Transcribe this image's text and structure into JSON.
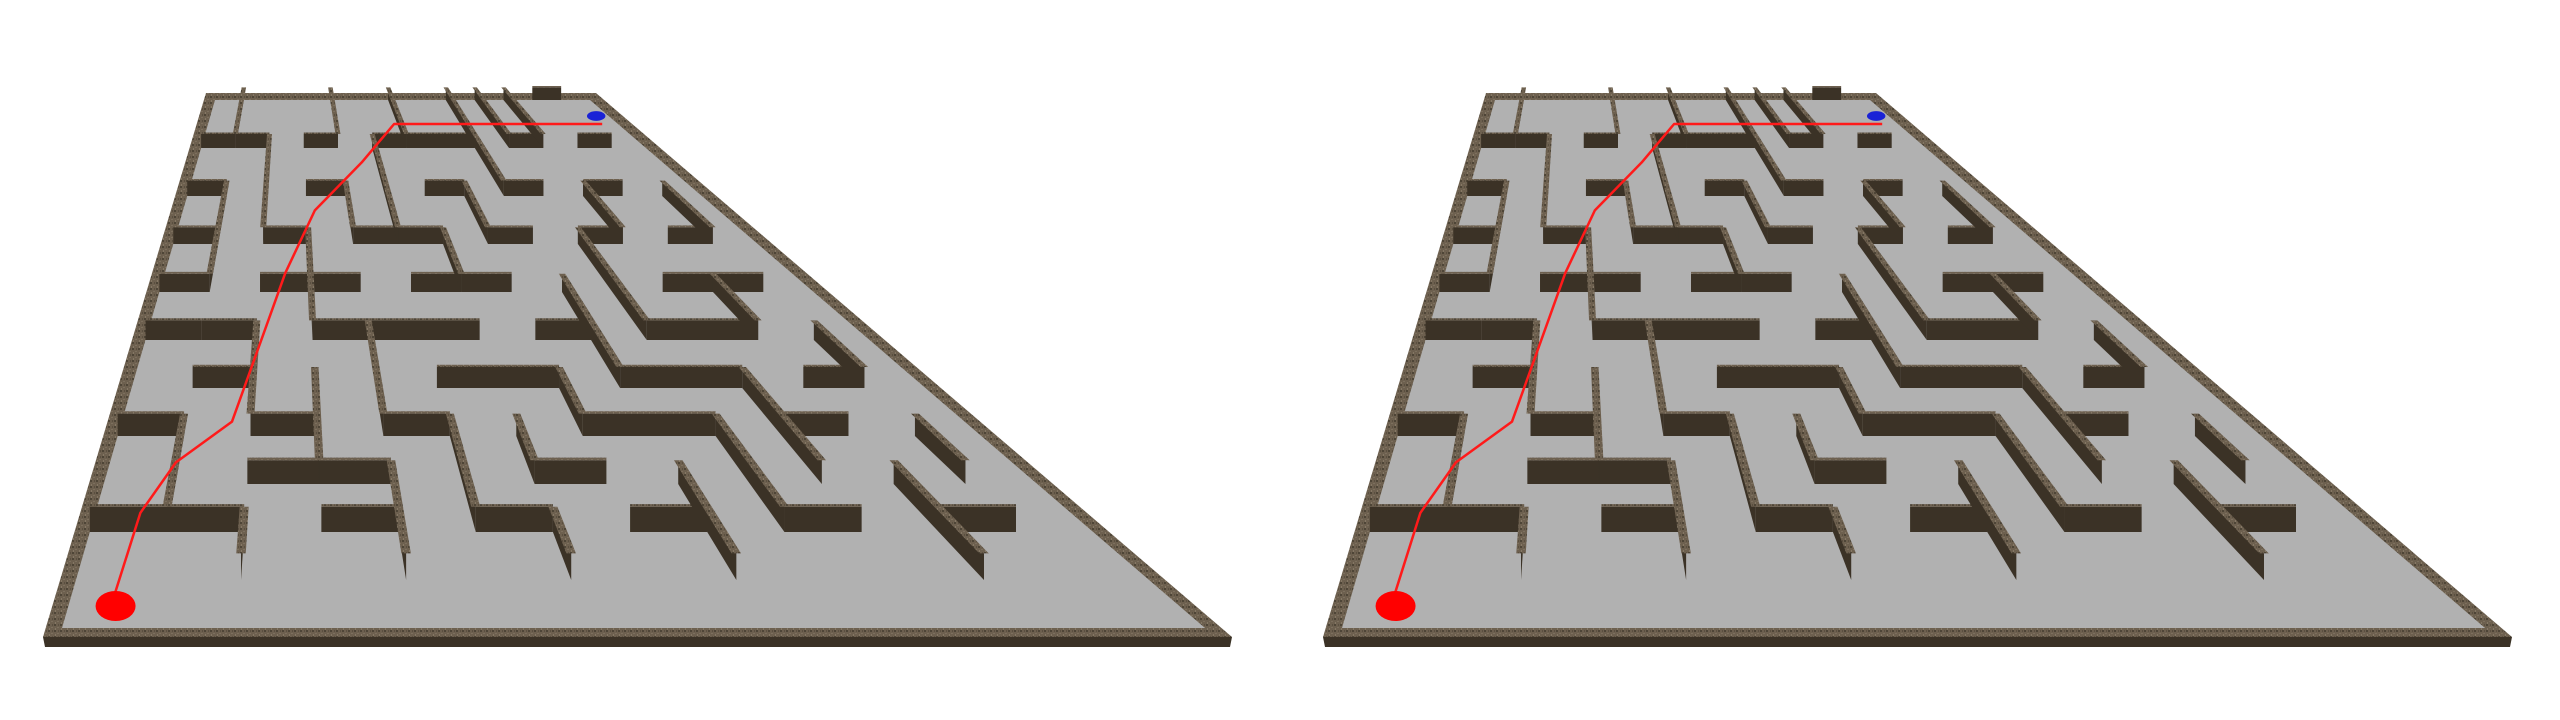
{
  "colors": {
    "background": "#ffffff",
    "floor": "#b1b1b1",
    "wall": "#6d604f",
    "wall_dark": "#4e4537",
    "wall_side": "#3b3226",
    "path": "#ff1a1a",
    "start_marker": "#ff0000",
    "goal_marker": "#1a22d6"
  },
  "views": [
    {
      "id": "left",
      "label": "",
      "path_points": [
        [
          0.5,
          10.5
        ],
        [
          0.6,
          8.6
        ],
        [
          0.95,
          7.55
        ],
        [
          1.7,
          6.7
        ],
        [
          2.5,
          3.6
        ],
        [
          3.2,
          2.3
        ],
        [
          4.6,
          1.3
        ],
        [
          5.9,
          0.5
        ],
        [
          12.5,
          0.5
        ]
      ]
    },
    {
      "id": "right",
      "label": "",
      "path_points": [
        [
          0.5,
          10.5
        ],
        [
          0.6,
          8.6
        ],
        [
          0.95,
          7.55
        ],
        [
          1.7,
          6.7
        ],
        [
          2.5,
          3.6
        ],
        [
          3.2,
          2.3
        ],
        [
          4.6,
          1.3
        ],
        [
          5.9,
          0.5
        ],
        [
          12.5,
          0.5
        ]
      ]
    }
  ],
  "maze": {
    "cols": 13,
    "rows": 11,
    "start_cell": [
      0,
      10
    ],
    "goal_cell": [
      12,
      0
    ],
    "walls": [
      [
        0,
        1,
        1,
        1
      ],
      [
        0,
        2,
        1,
        2
      ],
      [
        0,
        3,
        1,
        3
      ],
      [
        0,
        4,
        1,
        4
      ],
      [
        0,
        5,
        1,
        5
      ],
      [
        0,
        7,
        1,
        7
      ],
      [
        0,
        9,
        1,
        9
      ],
      [
        1,
        0,
        1,
        1
      ],
      [
        1,
        1,
        2,
        1
      ],
      [
        1,
        2,
        1,
        4
      ],
      [
        1,
        5,
        2,
        5
      ],
      [
        1,
        6,
        2,
        6
      ],
      [
        1,
        7,
        1,
        9
      ],
      [
        1,
        9,
        2,
        9
      ],
      [
        2,
        1,
        2,
        3
      ],
      [
        2,
        3,
        3,
        3
      ],
      [
        2,
        4,
        4,
        4
      ],
      [
        2,
        5,
        2,
        7
      ],
      [
        2,
        7,
        3,
        7
      ],
      [
        2,
        8,
        4,
        8
      ],
      [
        2,
        9,
        2,
        10
      ],
      [
        3,
        1,
        4,
        1
      ],
      [
        3,
        2,
        4,
        2
      ],
      [
        3,
        3,
        3,
        5
      ],
      [
        3,
        5,
        6,
        5
      ],
      [
        3,
        6,
        3,
        8
      ],
      [
        3,
        9,
        4,
        9
      ],
      [
        4,
        0,
        4,
        1
      ],
      [
        4,
        2,
        4,
        3
      ],
      [
        4,
        3,
        6,
        3
      ],
      [
        4,
        5,
        4,
        7
      ],
      [
        4,
        7,
        5,
        7
      ],
      [
        4,
        8,
        4,
        10
      ],
      [
        5,
        1,
        6,
        1
      ],
      [
        5,
        1,
        5,
        2
      ],
      [
        5,
        2,
        5,
        3
      ],
      [
        5,
        4,
        6,
        4
      ],
      [
        5,
        6,
        7,
        6
      ],
      [
        5,
        7,
        5,
        9
      ],
      [
        5,
        9,
        6,
        9
      ],
      [
        6,
        0,
        6,
        1
      ],
      [
        6,
        1,
        8,
        1
      ],
      [
        6,
        2,
        7,
        2
      ],
      [
        6,
        3,
        6,
        4
      ],
      [
        6,
        4,
        7,
        4
      ],
      [
        6,
        7,
        6,
        8
      ],
      [
        6,
        8,
        7,
        8
      ],
      [
        6,
        9,
        6,
        10
      ],
      [
        7,
        2,
        7,
        3
      ],
      [
        7,
        3,
        8,
        3
      ],
      [
        7,
        5,
        8,
        5
      ],
      [
        7,
        6,
        7,
        7
      ],
      [
        7,
        7,
        9,
        7
      ],
      [
        7,
        9,
        8,
        9
      ],
      [
        8,
        0,
        8,
        2
      ],
      [
        8,
        2,
        9,
        2
      ],
      [
        8,
        4,
        8,
        6
      ],
      [
        8,
        6,
        10,
        6
      ],
      [
        8,
        8,
        8,
        10
      ],
      [
        9,
        0,
        9,
        1
      ],
      [
        9,
        1,
        10,
        1
      ],
      [
        9,
        3,
        10,
        3
      ],
      [
        9,
        3,
        9,
        5
      ],
      [
        9,
        5,
        11,
        5
      ],
      [
        9,
        7,
        9,
        9
      ],
      [
        9,
        9,
        10,
        9
      ],
      [
        10,
        0,
        10,
        1
      ],
      [
        10,
        2,
        11,
        2
      ],
      [
        10,
        2,
        10,
        3
      ],
      [
        10,
        4,
        12,
        4
      ],
      [
        10,
        6,
        10,
        8
      ],
      [
        10,
        7,
        11,
        7
      ],
      [
        11,
        0,
        12,
        0
      ],
      [
        11,
        1,
        12,
        1
      ],
      [
        11,
        3,
        12,
        3
      ],
      [
        11,
        4,
        11,
        5
      ],
      [
        11,
        6,
        12,
        6
      ],
      [
        11,
        8,
        11,
        10
      ],
      [
        11,
        9,
        12,
        9
      ],
      [
        12,
        2,
        12,
        3
      ],
      [
        12,
        5,
        12,
        6
      ],
      [
        12,
        7,
        12,
        8
      ]
    ]
  }
}
